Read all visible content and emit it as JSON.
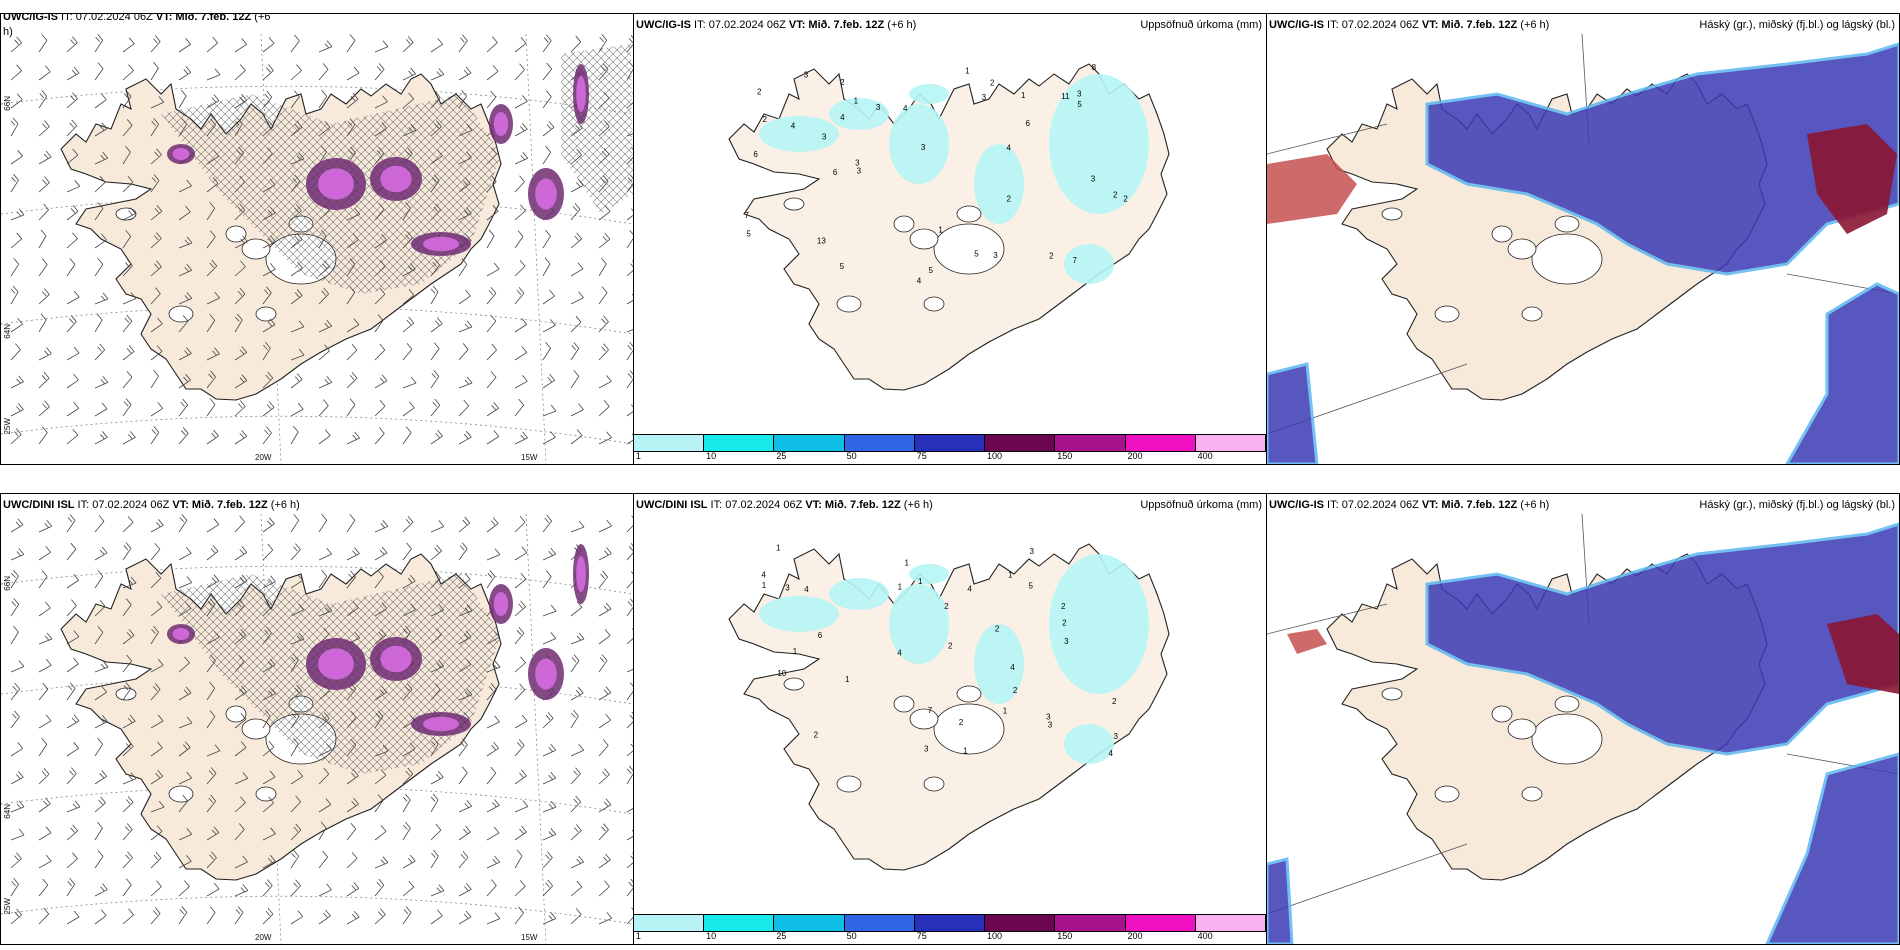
{
  "rows": [
    {
      "wind": {
        "model": "UWC/IG-IS",
        "rest": " IT: 07.02.2024 06Z ",
        "vt": "VT: Mið. 7.feb. 12Z",
        "lead": " (+6",
        "wrap": "h)"
      },
      "precip": {
        "model": "UWC/IG-IS",
        "rest": " IT: 07.02.2024 06Z ",
        "vt": "VT: Mið. 7.feb. 12Z",
        "lead": " (+6 h)",
        "right": "Uppsöfnuð úrkoma (mm)"
      },
      "cloud": {
        "model": "UWC/IG-IS",
        "rest": " IT: 07.02.2024 06Z ",
        "vt": "VT: Mið. 7.feb. 12Z",
        "lead": " (+6 h)",
        "right": "Háský (gr.), miðský (fj.bl.) og lágský (bl.)"
      },
      "labels": [
        "2",
        "4",
        "4",
        "5",
        "11",
        "4",
        "2",
        "3",
        "3",
        "2",
        "2",
        "1",
        "6",
        "13",
        "6",
        "5",
        "3",
        "4",
        "7",
        "5",
        "2",
        "3",
        "3",
        "1",
        "1",
        "3",
        "5",
        "2",
        "3",
        "6",
        "7",
        "3",
        "8",
        "4",
        "2",
        "2",
        "3",
        "3",
        "1",
        "5"
      ]
    },
    {
      "wind": {
        "model": "UWC/DINI ISL",
        "rest": " IT: 07.02.2024 06Z ",
        "vt": "VT: Mið. 7.feb. 12Z",
        "lead": " (+6 h)",
        "wrap": ""
      },
      "precip": {
        "model": "UWC/DINI ISL",
        "rest": " IT: 07.02.2024 06Z ",
        "vt": "VT: Mið. 7.feb. 12Z",
        "lead": " (+6 h)",
        "right": "Uppsöfnuð úrkoma (mm)"
      },
      "cloud": {
        "model": "UWC/IG-IS",
        "rest": " IT: 07.02.2024 06Z ",
        "vt": "VT: Mið. 7.feb. 12Z",
        "lead": " (+6 h)",
        "right": "Háský (gr.), miðský (fj.bl.) og lágský (bl.)"
      },
      "labels": [
        "2",
        "3",
        "4",
        "2",
        "3",
        "1",
        "1",
        "1",
        "6",
        "10",
        "3",
        "4",
        "4",
        "3",
        "3",
        "5",
        "2",
        "1",
        "2",
        "2",
        "1",
        "7",
        "2",
        "4",
        "2",
        "4",
        "1",
        "4",
        "2",
        "1",
        "2",
        "1",
        "3",
        "3",
        "1",
        "1"
      ]
    }
  ],
  "axis": {
    "lat66": "66N",
    "lat64": "64N",
    "lon20": "20W",
    "lon15": "15W",
    "lon25": "25W"
  },
  "colorbar": {
    "colors": [
      "#b8f4f5",
      "#19e9ea",
      "#10bfe6",
      "#3065e6",
      "#2730b8",
      "#6a0750",
      "#a8128a",
      "#f011c0",
      "#f7b2ef"
    ],
    "ticks": [
      "1",
      "10",
      "25",
      "50",
      "75",
      "100",
      "150",
      "200",
      "400"
    ]
  },
  "colors": {
    "land": "#f7eadb",
    "land_precip": "#fbf0e6",
    "coast": "#222222",
    "snow": "#b6f5f5",
    "hi": "#3a3ab4",
    "lowred": "#8b1531",
    "red": "#c75050"
  }
}
